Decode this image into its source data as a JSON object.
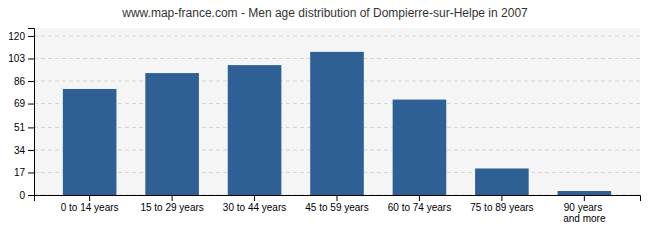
{
  "chart_data": {
    "type": "bar",
    "title": "www.map-france.com - Men age distribution of Dompierre-sur-Helpe in 2007",
    "categories": [
      "0 to 14 years",
      "15 to 29 years",
      "30 to 44 years",
      "45 to 59 years",
      "60 to 74 years",
      "75 to 89 years",
      "90 years and more"
    ],
    "values": [
      80,
      92,
      98,
      108,
      72,
      20,
      3
    ],
    "color": "#2e6096",
    "ylim": [
      0,
      126
    ],
    "yticks": [
      0,
      17,
      34,
      51,
      69,
      86,
      103,
      120
    ],
    "grid": true
  }
}
